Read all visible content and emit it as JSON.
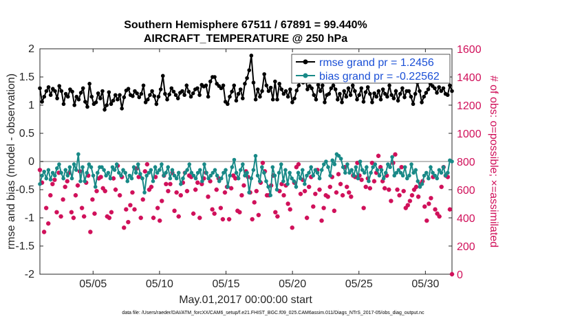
{
  "chart_data": {
    "type": "line",
    "title": "Southern Hemisphere 67511 / 67891 = 99.440%",
    "subtitle": "AIRCRAFT_TEMPERATURE @ 250 hPa",
    "xlabel": "May.01,2017 00:00:00 start",
    "ylabel": "rmse and bias (model - observation)",
    "ylabel_right": "# of obs: o=possible; ×=assimilated",
    "x_ticks": [
      "05/05",
      "05/10",
      "05/15",
      "05/20",
      "05/25",
      "05/30"
    ],
    "x_tick_days": [
      5,
      10,
      15,
      20,
      25,
      30
    ],
    "xlim": [
      1,
      32
    ],
    "ylim": [
      -2,
      2
    ],
    "y_ticks": [
      "-2",
      "-1.5",
      "-1",
      "-0.5",
      "0",
      "0.5",
      "1",
      "1.5",
      "2"
    ],
    "y_tick_values": [
      -2,
      -1.5,
      -1,
      -0.5,
      0,
      0.5,
      1,
      1.5,
      2
    ],
    "ylim_right": [
      0,
      1600
    ],
    "y_ticks_right": [
      "0",
      "200",
      "400",
      "600",
      "800",
      "1000",
      "1200",
      "1400",
      "1600"
    ],
    "y_tick_values_right": [
      0,
      200,
      400,
      600,
      800,
      1000,
      1200,
      1400,
      1600
    ],
    "grid": false,
    "zero_line": true,
    "legend_position": "top-right",
    "series": [
      {
        "name": "rmse grand pr = 1.2456",
        "color": "#000000",
        "values": [
          1.3,
          1.06,
          1.15,
          1.25,
          1.32,
          1.18,
          1.29,
          1.25,
          1.12,
          1.34,
          1.25,
          1.02,
          1.2,
          1.15,
          1.28,
          1.24,
          1.0,
          1.15,
          1.1,
          1.22,
          1.3,
          1.06,
          0.97,
          1.38,
          1.15,
          1.02,
          1.05,
          1.21,
          1.12,
          1.25,
          0.92,
          1.0,
          1.23,
          1.02,
          1.08,
          1.18,
          1.1,
          1.18,
          0.94,
          1.14,
          1.26,
          1.29,
          1.18,
          1.16,
          1.25,
          1.21,
          1.14,
          1.2,
          1.35,
          1.05,
          1.1,
          1.18,
          1.25,
          1.16,
          1.02,
          1.15,
          1.28,
          1.52,
          1.2,
          1.1,
          1.19,
          1.3,
          1.24,
          1.18,
          1.12,
          1.22,
          1.25,
          1.18,
          1.35,
          1.24,
          1.15,
          1.21,
          1.28,
          1.3,
          1.18,
          1.36,
          1.33,
          1.35,
          1.15,
          1.42,
          1.5,
          1.5,
          1.38,
          1.34,
          1.3,
          1.35,
          1.06,
          1.02,
          1.15,
          1.24,
          1.35,
          1.08,
          1.2,
          1.28,
          1.12,
          1.38,
          1.48,
          1.62,
          1.88,
          1.4,
          1.1,
          1.28,
          1.15,
          1.25,
          1.55,
          1.35,
          1.25,
          1.31,
          1.1,
          1.42,
          1.1,
          1.38,
          1.28,
          1.2,
          1.25,
          1.15,
          1.28,
          1.05,
          1.12,
          1.26,
          1.35,
          1.48,
          1.4,
          1.5,
          1.28,
          1.34,
          1.3,
          1.18,
          1.1,
          1.36,
          1.25,
          1.35,
          1.05,
          1.18,
          1.2,
          1.3,
          1.35,
          1.28,
          1.1,
          1.2,
          1.05,
          1.25,
          1.15,
          1.3,
          1.18,
          1.35,
          1.25,
          1.1,
          1.18,
          1.3,
          1.06,
          1.23,
          1.32,
          1.2,
          1.05,
          1.21,
          1.15,
          1.25,
          1.1,
          1.28,
          1.2,
          1.15,
          1.35,
          1.18,
          1.12,
          1.25,
          1.08,
          1.2,
          1.3,
          1.14,
          1.25,
          1.25,
          1.15,
          1.02,
          1.2,
          1.4,
          1.25,
          1.05,
          1.15,
          1.22,
          1.28,
          1.38,
          1.34,
          1.3,
          1.22,
          1.32,
          1.25,
          1.3,
          1.2,
          1.18,
          1.35,
          1.25
        ]
      },
      {
        "name": "bias grand pr = -0.22562",
        "color": "#188987",
        "values": [
          -0.4,
          -0.25,
          -0.18,
          -0.3,
          -0.15,
          -0.32,
          -0.2,
          -0.25,
          -0.12,
          -0.05,
          -0.2,
          -0.3,
          -0.15,
          -0.25,
          -0.1,
          -0.3,
          -0.05,
          -0.15,
          0.13,
          -0.35,
          -0.1,
          -0.35,
          -0.2,
          -0.05,
          -0.1,
          -0.25,
          -0.45,
          -0.2,
          -0.1,
          -0.1,
          -0.15,
          -0.25,
          -0.2,
          -0.3,
          -0.1,
          -0.15,
          -0.05,
          -0.2,
          -0.25,
          -0.15,
          -0.2,
          -0.35,
          -0.25,
          -0.3,
          -0.1,
          -0.2,
          -0.05,
          -0.22,
          -0.3,
          -0.55,
          -0.25,
          -0.2,
          -0.15,
          -0.35,
          -0.1,
          -0.2,
          -0.15,
          -0.05,
          -0.25,
          -0.2,
          -0.1,
          -0.3,
          -0.15,
          -0.25,
          -0.3,
          -0.2,
          -0.4,
          -0.3,
          -0.2,
          -0.15,
          -0.05,
          -0.2,
          -0.25,
          -0.3,
          -0.2,
          -0.15,
          -0.35,
          -0.05,
          -0.2,
          -0.3,
          -0.25,
          -0.2,
          -0.15,
          -0.25,
          -0.35,
          -0.3,
          -0.2,
          -0.15,
          -0.45,
          -0.25,
          -0.1,
          0.03,
          -0.2,
          -0.3,
          -0.15,
          -0.05,
          -0.25,
          -0.2,
          -0.55,
          -0.3,
          -0.15,
          0.1,
          -0.25,
          -0.35,
          -0.1,
          -0.2,
          -0.35,
          -0.45,
          -0.6,
          -0.1,
          -0.25,
          -0.5,
          -0.2,
          -0.05,
          -0.35,
          -0.15,
          -0.4,
          -0.2,
          -0.3,
          -0.35,
          -0.45,
          -0.2,
          -0.3,
          -0.15,
          -0.4,
          -0.25,
          -0.2,
          -0.1,
          -0.25,
          -0.15,
          -0.2,
          -0.3,
          -0.15,
          -0.05,
          0.0,
          -0.1,
          -0.25,
          0.02,
          -0.05,
          0.13,
          0.1,
          0.05,
          -0.1,
          -0.2,
          -0.05,
          -0.2,
          -0.15,
          -0.25,
          -0.1,
          -0.3,
          0.0,
          -0.15,
          -0.2,
          -0.1,
          -0.35,
          -0.2,
          -0.1,
          -0.05,
          -0.15,
          -0.25,
          -0.15,
          -0.3,
          -0.2,
          -0.05,
          -0.1,
          0.08,
          -0.25,
          -0.2,
          -0.15,
          -0.2,
          -0.25,
          -0.1,
          -0.3,
          -0.25,
          -0.05,
          -0.2,
          -0.15,
          -0.35,
          -0.45,
          -0.4,
          -0.25,
          -0.2,
          -0.3,
          -0.1,
          -0.2,
          -0.25,
          -0.3,
          -0.15,
          -0.2,
          -0.1,
          -0.25,
          -0.2,
          0.02,
          0.0
        ]
      },
      {
        "name": "# of obs assimilated",
        "color": "#d0105a",
        "axis": "right",
        "values": [
          740,
          650,
          300,
          470,
          360,
          560,
          640,
          670,
          440,
          720,
          410,
          530,
          620,
          660,
          720,
          440,
          400,
          560,
          630,
          730,
          470,
          410,
          650,
          700,
          300,
          530,
          430,
          590,
          680,
          690,
          610,
          590,
          410,
          400,
          440,
          680,
          600,
          770,
          560,
          690,
          330,
          460,
          370,
          490,
          580,
          460,
          750,
          690,
          400,
          530,
          730,
          780,
          600,
          620,
          400,
          690,
          470,
          380,
          520,
          700,
          640,
          590,
          640,
          720,
          450,
          580,
          410,
          560,
          650,
          720,
          590,
          700,
          690,
          430,
          600,
          650,
          400,
          640,
          680,
          720,
          550,
          660,
          460,
          430,
          600,
          680,
          470,
          390,
          580,
          620,
          390,
          610,
          700,
          680,
          450,
          440,
          560,
          630,
          730,
          690,
          580,
          390,
          510,
          590,
          420,
          650,
          790,
          730,
          560,
          560,
          630,
          700,
          440,
          410,
          590,
          640,
          560,
          630,
          500,
          460,
          330,
          650,
          760,
          780,
          570,
          670,
          590,
          400,
          620,
          690,
          480,
          570,
          740,
          600,
          380,
          470,
          560,
          550,
          620,
          690,
          450,
          580,
          710,
          640,
          560,
          760,
          620,
          580,
          550,
          700,
          690,
          790,
          700,
          670,
          470,
          620,
          680,
          610,
          790,
          660,
          720,
          840,
          760,
          660,
          610,
          700,
          600,
          520,
          790,
          850,
          600,
          560,
          760,
          590,
          470,
          490,
          520,
          560,
          600,
          620,
          550,
          640,
          660,
          480,
          380,
          500,
          540,
          690,
          460,
          430,
          410,
          620,
          760,
          700,
          690,
          460,
          0
        ]
      }
    ]
  },
  "footer": {
    "data_file": "data file: /Users/raeder/DAI/ATM_forcXX/CAM6_setup/f.e21.FHIST_BGC.f09_025.CAM6assim.011/Diags_NTrS_2017-05/obs_diag_output.nc"
  }
}
